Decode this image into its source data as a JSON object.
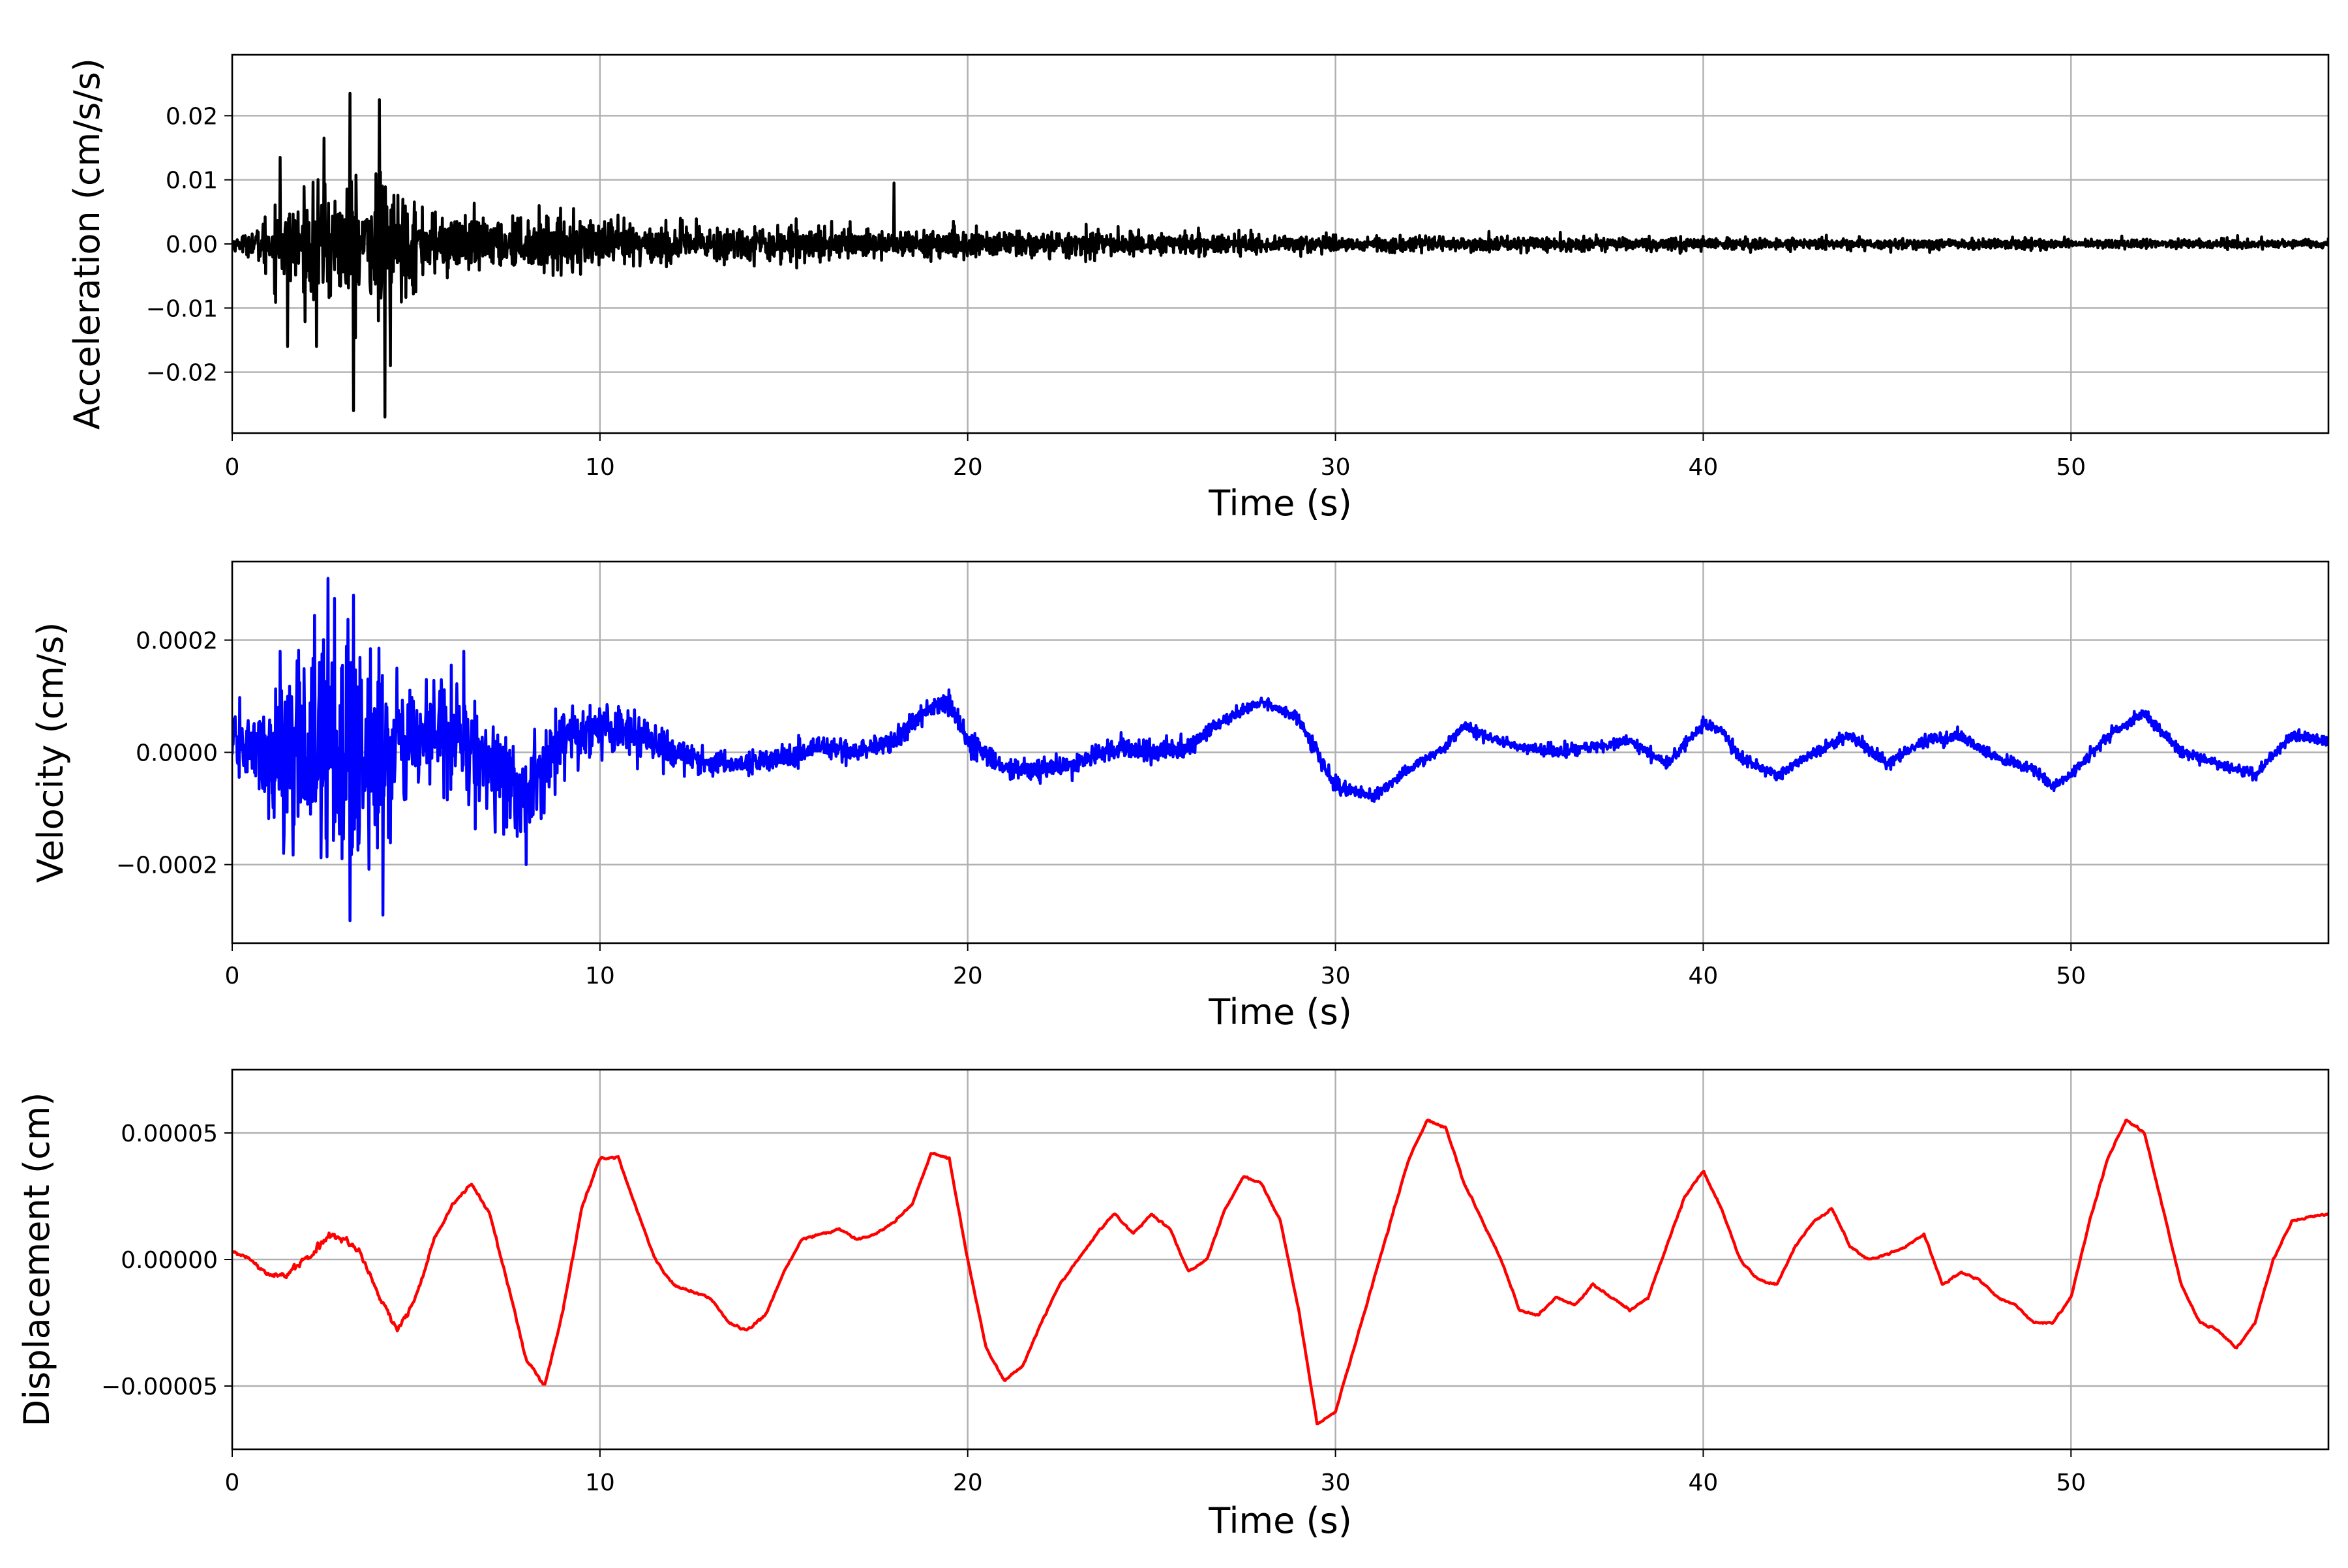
{
  "chart_data": [
    {
      "type": "line",
      "xlabel": "Time (s)",
      "ylabel": "Acceleration (cm/s/s)",
      "xlim": [
        0,
        57
      ],
      "ylim": [
        -0.0295,
        0.0295
      ],
      "xticks": [
        0,
        10,
        20,
        30,
        40,
        50
      ],
      "xtick_labels": [
        "0",
        "10",
        "20",
        "30",
        "40",
        "50"
      ],
      "yticks": [
        -0.02,
        -0.01,
        0.0,
        0.01,
        0.02
      ],
      "ytick_labels": [
        "−0.02",
        "−0.01",
        "0.00",
        "0.01",
        "0.02"
      ],
      "grid": true,
      "color": "#000000",
      "series": [
        {
          "x": [
            0,
            0.5,
            1.0,
            1.3,
            1.5,
            2.0,
            2.5,
            2.8,
            3.2,
            3.6,
            4.0,
            4.3,
            4.7,
            5.2,
            5.8,
            6.4,
            7.0,
            8.0,
            9.0,
            10.0,
            11.0,
            12.0,
            14.0,
            16.0,
            18.0,
            20.0,
            24.0,
            28.0,
            30.0,
            35.0,
            40.0,
            45.0,
            50.0,
            57.0
          ],
          "envelope": [
            0.002,
            0.004,
            0.012,
            0.014,
            0.013,
            0.016,
            0.021,
            0.019,
            0.024,
            0.02,
            0.026,
            0.02,
            0.016,
            0.013,
            0.011,
            0.01,
            0.009,
            0.009,
            0.009,
            0.009,
            0.008,
            0.007,
            0.0065,
            0.006,
            0.0055,
            0.005,
            0.004,
            0.0035,
            0.003,
            0.0025,
            0.0022,
            0.002,
            0.0017,
            0.0015
          ],
          "peaks": [
            [
              1.3,
              0.0135
            ],
            [
              1.5,
              -0.016
            ],
            [
              2.5,
              0.0165
            ],
            [
              3.2,
              0.0235
            ],
            [
              3.3,
              -0.026
            ],
            [
              4.0,
              0.0225
            ],
            [
              4.15,
              -0.027
            ],
            [
              4.3,
              -0.019
            ],
            [
              2.3,
              -0.016
            ],
            [
              18.0,
              0.0095
            ]
          ]
        }
      ]
    },
    {
      "type": "line",
      "xlabel": "Time (s)",
      "ylabel": "Velocity (cm/s)",
      "xlim": [
        0,
        57
      ],
      "ylim": [
        -0.00034,
        0.00034
      ],
      "xticks": [
        0,
        10,
        20,
        30,
        40,
        50
      ],
      "xtick_labels": [
        "0",
        "10",
        "20",
        "30",
        "40",
        "50"
      ],
      "yticks": [
        -0.0002,
        0.0,
        0.0002
      ],
      "ytick_labels": [
        "−0.0002",
        "0.0000",
        "0.0002"
      ],
      "grid": true,
      "color": "#0000ff",
      "series": [
        {
          "x": [
            0,
            1,
            2,
            3,
            4,
            5,
            6,
            7,
            8,
            9,
            10,
            11,
            12,
            13,
            14,
            15,
            16,
            17,
            18,
            19,
            19.5,
            20,
            21,
            22,
            23,
            24,
            25,
            26,
            27,
            28,
            29,
            30,
            31,
            32,
            33,
            33.5,
            34,
            35,
            36,
            37,
            38,
            39,
            40,
            40.5,
            41,
            42,
            43,
            44,
            45,
            46,
            47,
            48,
            49,
            49.5,
            50,
            51,
            52,
            53,
            54,
            55,
            56,
            57
          ],
          "y": [
            2e-05,
            -1e-05,
            2e-05,
            1e-05,
            -2e-05,
            3e-05,
            4e-05,
            -2e-05,
            -8e-05,
            2e-05,
            5e-05,
            3e-05,
            0.0,
            -2e-05,
            -2e-05,
            -1e-05,
            1e-05,
            0.0,
            2e-05,
            8e-05,
            9e-05,
            2e-05,
            -3e-05,
            -3e-05,
            -2e-05,
            1e-05,
            0.0,
            1e-05,
            6e-05,
            9e-05,
            6e-05,
            -6e-05,
            -8e-05,
            -3e-05,
            1e-05,
            5e-05,
            3e-05,
            1e-05,
            0.0,
            1e-05,
            2e-05,
            -2e-05,
            5e-05,
            4e-05,
            -1e-05,
            -4e-05,
            0.0,
            3e-05,
            -2e-05,
            2e-05,
            3e-05,
            -1e-05,
            -3e-05,
            -6e-05,
            -4e-05,
            3e-05,
            7e-05,
            0.0,
            -2e-05,
            -4e-05,
            3e-05,
            2e-05
          ],
          "noise": [
            4e-05,
            0.0001,
            0.00018,
            0.00022,
            0.00016,
            0.0001,
            0.00011,
            9e-05,
            7e-05,
            5e-05,
            5e-05,
            4e-05,
            3e-05,
            2e-05,
            2e-05,
            2e-05,
            2e-05,
            2e-05,
            2e-05,
            2e-05,
            2e-05,
            2e-05,
            2e-05,
            2e-05,
            2e-05,
            2e-05,
            2e-05,
            2e-05,
            1e-05,
            1e-05,
            1e-05,
            2e-05,
            1e-05,
            1e-05,
            1e-05,
            1e-05,
            1e-05,
            1e-05,
            1e-05,
            1e-05,
            1e-05,
            1e-05,
            1e-05,
            1e-05,
            1e-05,
            1e-05,
            1e-05,
            1e-05,
            1e-05,
            1e-05,
            1e-05,
            1e-05,
            1e-05,
            1e-05,
            1e-05,
            1e-05,
            1e-05,
            1e-05,
            1e-05,
            1e-05,
            1e-05,
            1e-05
          ],
          "peaks": [
            [
              2.6,
              0.00031
            ],
            [
              3.2,
              -0.0003
            ],
            [
              3.3,
              0.00028
            ],
            [
              4.1,
              -0.00029
            ],
            [
              1.3,
              0.00018
            ],
            [
              6.3,
              0.00018
            ],
            [
              8.0,
              -0.0002
            ],
            [
              1.4,
              -0.00018
            ]
          ]
        }
      ]
    },
    {
      "type": "line",
      "xlabel": "Time (s)",
      "ylabel": "Displacement (cm)",
      "xlim": [
        0,
        57
      ],
      "ylim": [
        -7.5e-05,
        7.5e-05
      ],
      "xticks": [
        0,
        10,
        20,
        30,
        40,
        50
      ],
      "xtick_labels": [
        "0",
        "10",
        "20",
        "30",
        "40",
        "50"
      ],
      "yticks": [
        -5e-05,
        0.0,
        5e-05
      ],
      "ytick_labels": [
        "−0.00005",
        "0.00000",
        "0.00005"
      ],
      "grid": true,
      "color": "#ff0000",
      "series": [
        {
          "x": [
            0,
            0.5,
            1.0,
            1.5,
            2.0,
            2.5,
            3.0,
            3.5,
            4.0,
            4.5,
            5.0,
            5.5,
            6.0,
            6.5,
            7.0,
            7.5,
            8.0,
            8.5,
            9.0,
            9.5,
            10.0,
            10.5,
            11.0,
            11.5,
            12.0,
            12.5,
            13.0,
            13.5,
            14.0,
            14.5,
            15.0,
            15.5,
            16.0,
            16.5,
            17.0,
            17.5,
            18.0,
            18.5,
            19.0,
            19.5,
            20.0,
            20.5,
            21.0,
            21.5,
            22.0,
            22.5,
            23.0,
            23.5,
            24.0,
            24.5,
            25.0,
            25.5,
            26.0,
            26.5,
            27.0,
            27.5,
            28.0,
            28.5,
            29.0,
            29.5,
            30.0,
            30.5,
            31.0,
            31.5,
            32.0,
            32.5,
            33.0,
            33.5,
            34.0,
            34.5,
            35.0,
            35.5,
            36.0,
            36.5,
            37.0,
            37.5,
            38.0,
            38.5,
            39.0,
            39.5,
            40.0,
            40.5,
            41.0,
            41.5,
            42.0,
            42.5,
            43.0,
            43.5,
            44.0,
            44.5,
            45.0,
            45.5,
            46.0,
            46.5,
            47.0,
            47.5,
            48.0,
            48.5,
            49.0,
            49.5,
            50.0,
            50.5,
            51.0,
            51.5,
            52.0,
            52.5,
            53.0,
            53.5,
            54.0,
            54.5,
            55.0,
            55.5,
            56.0,
            56.5,
            57.0
          ],
          "y": [
            3e-06,
            0.0,
            -6e-06,
            -6e-06,
            0.0,
            8e-06,
            8e-06,
            2e-06,
            -1.5e-05,
            -2.8e-05,
            -1.5e-05,
            8e-06,
            2.2e-05,
            3e-05,
            1.8e-05,
            -1e-05,
            -4e-05,
            -5e-05,
            -2e-05,
            2e-05,
            4e-05,
            4e-05,
            2e-05,
            0.0,
            -1e-05,
            -1.3e-05,
            -1.5e-05,
            -2.5e-05,
            -2.8e-05,
            -2.2e-05,
            -5e-06,
            8e-06,
            1e-05,
            1.2e-05,
            8e-06,
            1e-05,
            1.5e-05,
            2.2e-05,
            4.2e-05,
            4e-05,
            0.0,
            -3.5e-05,
            -4.8e-05,
            -4.2e-05,
            -2.5e-05,
            -1e-05,
            0.0,
            1e-05,
            1.8e-05,
            1e-05,
            1.8e-05,
            1.2e-05,
            -5e-06,
            0.0,
            2e-05,
            3.3e-05,
            3e-05,
            1.5e-05,
            -2e-05,
            -6.5e-05,
            -6e-05,
            -3.5e-05,
            -1e-05,
            1.5e-05,
            4e-05,
            5.5e-05,
            5.2e-05,
            3e-05,
            1.5e-05,
            0.0,
            -2e-05,
            -2.2e-05,
            -1.5e-05,
            -1.8e-05,
            -1e-05,
            -1.5e-05,
            -2e-05,
            -1.5e-05,
            5e-06,
            2.5e-05,
            3.5e-05,
            2e-05,
            0.0,
            -8e-06,
            -1e-05,
            5e-06,
            1.5e-05,
            2e-05,
            5e-06,
            0.0,
            2e-06,
            5e-06,
            1e-05,
            -1e-05,
            -5e-06,
            -8e-06,
            -1.5e-05,
            -1.8e-05,
            -2.5e-05,
            -2.5e-05,
            -1.5e-05,
            1.5e-05,
            4e-05,
            5.5e-05,
            5e-05,
            2e-05,
            -1e-05,
            -2.5e-05,
            -2.8e-05,
            -3.5e-05,
            -2.5e-05,
            0.0,
            1.5e-05,
            1.7e-05,
            1.8e-05
          ],
          "noise": [
            6e-07,
            6e-07,
            8e-07,
            1.2e-06,
            1.6e-06,
            1.8e-06,
            1.8e-06,
            1.6e-06,
            1.4e-06,
            1.4e-06,
            1e-06,
            8e-07,
            7e-07,
            6e-07,
            6e-07,
            6e-07,
            6e-07,
            6e-07,
            6e-07,
            6e-07,
            6e-07,
            6e-07,
            5e-07,
            5e-07,
            5e-07,
            5e-07,
            5e-07,
            5e-07,
            5e-07,
            5e-07,
            4e-07,
            4e-07,
            4e-07,
            4e-07,
            4e-07,
            4e-07,
            4e-07,
            4e-07,
            4e-07,
            4e-07,
            4e-07,
            4e-07,
            4e-07,
            4e-07,
            4e-07,
            4e-07,
            4e-07,
            4e-07,
            4e-07,
            4e-07,
            4e-07,
            4e-07,
            4e-07,
            4e-07,
            4e-07,
            4e-07,
            4e-07,
            4e-07,
            4e-07,
            4e-07,
            4e-07,
            4e-07,
            4e-07,
            4e-07,
            4e-07,
            4e-07,
            4e-07,
            4e-07,
            4e-07,
            4e-07,
            4e-07,
            4e-07,
            4e-07,
            4e-07,
            4e-07,
            4e-07,
            4e-07,
            4e-07,
            4e-07,
            4e-07,
            4e-07,
            4e-07,
            4e-07,
            4e-07,
            4e-07,
            4e-07,
            4e-07,
            4e-07,
            4e-07,
            4e-07,
            4e-07,
            4e-07,
            4e-07,
            4e-07,
            4e-07,
            4e-07,
            4e-07,
            4e-07,
            4e-07,
            4e-07,
            4e-07,
            4e-07,
            4e-07,
            4e-07,
            4e-07,
            4e-07,
            4e-07,
            4e-07,
            4e-07,
            4e-07,
            4e-07,
            4e-07,
            4e-07,
            4e-07,
            4e-07
          ]
        }
      ]
    }
  ]
}
